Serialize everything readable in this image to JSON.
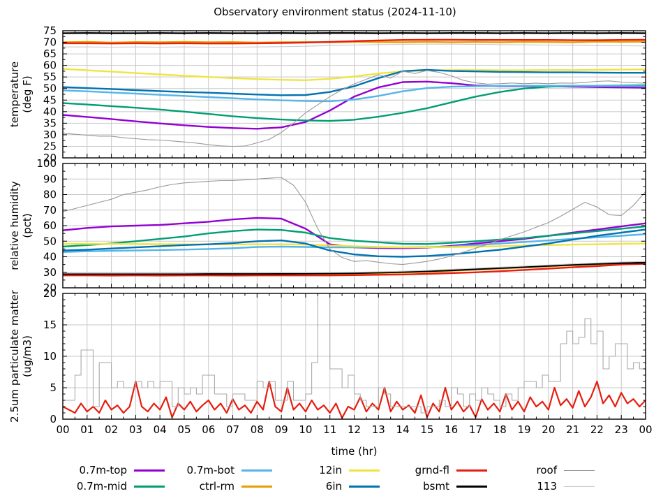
{
  "chart_data": {
    "type": "line",
    "title": "Observatory environment status (2024-11-10)",
    "xlabel": "time (hr)",
    "xlim": [
      0,
      24
    ],
    "grid": true,
    "legend_position": "bottom",
    "x_tick_labels": [
      "00",
      "01",
      "02",
      "03",
      "04",
      "05",
      "06",
      "07",
      "08",
      "09",
      "10",
      "11",
      "12",
      "13",
      "14",
      "15",
      "16",
      "17",
      "18",
      "19",
      "20",
      "21",
      "22",
      "23",
      "00"
    ],
    "legend": [
      {
        "label": "0.7m-top",
        "color": "#9400d3",
        "thin": false
      },
      {
        "label": "0.7m-mid",
        "color": "#009e73",
        "thin": false
      },
      {
        "label": "0.7m-bot",
        "color": "#56b4e9",
        "thin": false
      },
      {
        "label": "ctrl-rm",
        "color": "#e69f00",
        "thin": false
      },
      {
        "label": "12in",
        "color": "#f0e442",
        "thin": false
      },
      {
        "label": "6in",
        "color": "#0072b2",
        "thin": false
      },
      {
        "label": "grnd-fl",
        "color": "#e51e10",
        "thin": false
      },
      {
        "label": "bsmt",
        "color": "#000000",
        "thin": false
      },
      {
        "label": "roof",
        "color": "#999999",
        "thin": true
      },
      {
        "label": "113",
        "color": "#c9c9c9",
        "thin": true
      }
    ],
    "panels": [
      {
        "key": "temperature",
        "ylabel_lines": [
          "temperature",
          "(deg F)"
        ],
        "ylim": [
          20,
          75
        ],
        "yticks": [
          20,
          25,
          30,
          35,
          40,
          45,
          50,
          55,
          60,
          65,
          70,
          75
        ],
        "yminor": 2.5,
        "series": [
          {
            "name": "0.7m-top",
            "color": "#9400d3",
            "width": 2.4,
            "y": [
              38.6,
              37.7,
              36.8,
              35.8,
              34.9,
              34.1,
              33.4,
              32.9,
              32.6,
              33.2,
              35.5,
              40.5,
              46.5,
              50.5,
              52.8,
              53,
              52.3,
              51.3,
              51,
              51,
              51,
              50.8,
              50.6,
              50.5,
              50.4
            ]
          },
          {
            "name": "0.7m-mid",
            "color": "#009e73",
            "width": 2.4,
            "y": [
              43.7,
              43.1,
              42.4,
              41.7,
              40.9,
              40,
              39,
              38,
              37.2,
              36.6,
              36.2,
              36,
              36.5,
              37.8,
              39.5,
              41.5,
              44,
              46.5,
              48.5,
              50,
              50.8,
              51.1,
              51.2,
              51.3,
              51.4
            ]
          },
          {
            "name": "0.7m-bot",
            "color": "#56b4e9",
            "width": 2.4,
            "y": [
              49.2,
              48.8,
              48.3,
              47.8,
              47.3,
              46.8,
              46.3,
              45.8,
              45.3,
              44.9,
              44.6,
              44.5,
              45.2,
              46.8,
              48.8,
              50.2,
              50.8,
              51,
              51.1,
              51.2,
              51.2,
              51.2,
              51.1,
              51.1,
              51
            ]
          },
          {
            "name": "ctrl-rm",
            "color": "#e69f00",
            "width": 2.4,
            "y": [
              70,
              70.2,
              69.9,
              70.1,
              70,
              70.2,
              70,
              70.1,
              69.9,
              70,
              70.1,
              70,
              70.2,
              70.1,
              70,
              70.2,
              70,
              70.1,
              70,
              70.2,
              70.1,
              70,
              70.3,
              70.2,
              70.3
            ]
          },
          {
            "name": "12in",
            "color": "#f0e442",
            "width": 2.4,
            "y": [
              58.5,
              57.9,
              57.3,
              56.7,
              56.1,
              55.5,
              55,
              54.5,
              54.1,
              53.8,
              53.6,
              54.2,
              55.2,
              56.5,
              57.4,
              57.8,
              58,
              58,
              57.9,
              57.9,
              58,
              58,
              58.1,
              58.2,
              58.3
            ]
          },
          {
            "name": "6in",
            "color": "#0072b2",
            "width": 2.4,
            "y": [
              50.6,
              50.2,
              49.8,
              49.3,
              48.9,
              48.5,
              48.2,
              47.8,
              47.4,
              47.1,
              47.2,
              48.5,
              51,
              54.5,
              57.5,
              58.1,
              57.6,
              57.4,
              57.2,
              57.1,
              57,
              57,
              56.9,
              56.8,
              56.8
            ]
          },
          {
            "name": "grnd-fl",
            "color": "#e51e10",
            "width": 2.4,
            "y": [
              69.6,
              69.6,
              69.5,
              69.6,
              69.5,
              69.6,
              69.5,
              69.5,
              69.6,
              69.7,
              69.9,
              70.2,
              70.5,
              70.8,
              71,
              71.1,
              71.1,
              71,
              71,
              71,
              71,
              70.9,
              70.9,
              71,
              71.1
            ]
          },
          {
            "name": "bsmt",
            "color": "#000000",
            "width": 2.4,
            "y": [
              73.9,
              74,
              73.9,
              73.9,
              74,
              73.9,
              74,
              73.9,
              73.9,
              74,
              73.9,
              74,
              74,
              73.9,
              74,
              73.9,
              74,
              74,
              73.9,
              74,
              73.9,
              74,
              73.9,
              74,
              73.9
            ]
          },
          {
            "name": "roof",
            "color": "#999999",
            "width": 1.1,
            "y": [
              30.7,
              30.2,
              29.8,
              29.4,
              29.4,
              28.7,
              28.3,
              27.9,
              27.7,
              27.3,
              26.9,
              26.4,
              25.7,
              25.2,
              25,
              25.1,
              26.5,
              28,
              31,
              35,
              39.5,
              43,
              46.5,
              49.5,
              52,
              54,
              56,
              54.5,
              57.5,
              56.5,
              57.8,
              57,
              55.5,
              53.5,
              52.5,
              51.9,
              52.1,
              52.4,
              52.1,
              52.3,
              52.1,
              52.4,
              52.3,
              52.6,
              53.1,
              53.3,
              52.8,
              52.5,
              52.3
            ]
          },
          {
            "name": "113",
            "color": "#c9c9c9",
            "width": 1.1,
            "y": [
              68,
              68,
              67.9,
              68,
              67.9,
              68,
              67.9,
              67.9,
              68,
              68.1,
              68.3,
              68.6,
              68.8,
              69,
              69.1,
              69.2,
              69.2,
              69.1,
              69,
              68.9,
              68.8,
              68.7,
              68.6,
              68.5,
              68.4
            ]
          }
        ]
      },
      {
        "key": "humidity",
        "ylabel_lines": [
          "relative humidity",
          "(pct)"
        ],
        "ylim": [
          20,
          100
        ],
        "yticks": [
          20,
          30,
          40,
          50,
          60,
          70,
          80,
          90,
          100
        ],
        "yminor": 5,
        "series": [
          {
            "name": "0.7m-top",
            "color": "#9400d3",
            "width": 2.4,
            "y": [
              57,
              58.5,
              59.5,
              60,
              60.5,
              61.5,
              62.5,
              64,
              65,
              64.5,
              58,
              48,
              46,
              45.6,
              45.5,
              45.8,
              47,
              48.5,
              50,
              51.5,
              53.5,
              55.5,
              57.5,
              59.5,
              61.5
            ]
          },
          {
            "name": "0.7m-mid",
            "color": "#009e73",
            "width": 2.4,
            "y": [
              46.5,
              47.5,
              48.5,
              50,
              51.5,
              53,
              55,
              56.5,
              57.5,
              57.2,
              55.5,
              52,
              50.3,
              49.3,
              48.3,
              48.2,
              49,
              50,
              51,
              52,
              53.5,
              55,
              56.5,
              58,
              59.5
            ]
          },
          {
            "name": "0.7m-bot",
            "color": "#56b4e9",
            "width": 2.4,
            "y": [
              43,
              43.5,
              43.8,
              44,
              44.3,
              44.6,
              45,
              45.5,
              46.3,
              46.5,
              46.3,
              46,
              46,
              46,
              46,
              46.2,
              46.5,
              47.5,
              48.5,
              49.5,
              50.5,
              51.5,
              52.5,
              53.5,
              54.5
            ]
          },
          {
            "name": "ctrl-rm",
            "color": "#e69f00",
            "width": 2.4,
            "y": [
              28.6,
              28.6,
              28.6,
              28.6,
              28.6,
              28.6,
              28.7,
              28.7,
              28.7,
              28.8,
              28.8,
              28.9,
              29.1,
              29.4,
              29.8,
              30.3,
              31,
              31.7,
              32.4,
              33.1,
              33.8,
              34.5,
              35.1,
              35.6,
              36
            ]
          },
          {
            "name": "12in",
            "color": "#f0e442",
            "width": 2.4,
            "y": [
              48.3,
              48.3,
              48.2,
              48.2,
              48.1,
              48,
              48,
              47.9,
              48,
              48,
              47.8,
              47.3,
              46.8,
              46.3,
              46,
              46,
              46.2,
              46.5,
              46.8,
              47.2,
              47.5,
              47.8,
              48,
              48.3,
              48.5
            ]
          },
          {
            "name": "6in",
            "color": "#0072b2",
            "width": 2.4,
            "y": [
              44,
              44.5,
              45.3,
              46,
              46.8,
              47.5,
              48,
              48.8,
              50,
              50.5,
              48.5,
              44,
              41.5,
              40.3,
              40,
              40.5,
              41.5,
              43,
              44.5,
              46.5,
              48.5,
              51,
              53.5,
              55.5,
              57.5
            ]
          },
          {
            "name": "grnd-fl",
            "color": "#e51e10",
            "width": 2.4,
            "y": [
              28,
              28,
              27.9,
              28,
              27.9,
              28,
              28,
              27.9,
              28,
              28,
              28,
              28,
              28.2,
              28.4,
              28.6,
              29,
              29.5,
              30,
              30.7,
              31.5,
              32.3,
              33.2,
              34,
              35,
              35.5
            ]
          },
          {
            "name": "bsmt",
            "color": "#000000",
            "width": 2.4,
            "y": [
              29,
              29,
              29,
              29,
              29,
              29,
              29,
              29,
              29.1,
              29.1,
              29.2,
              29.3,
              29.5,
              29.8,
              30.2,
              30.7,
              31.3,
              32,
              32.7,
              33.4,
              34.1,
              34.8,
              35.4,
              35.9,
              36.2
            ]
          },
          {
            "name": "roof",
            "color": "#999999",
            "width": 1.1,
            "y": [
              69,
              71,
              73,
              75,
              77,
              80,
              81.5,
              83,
              85,
              86.5,
              87.5,
              88,
              88.5,
              89,
              89,
              89.5,
              90,
              90.5,
              91,
              86,
              75,
              58,
              45,
              39.5,
              37,
              37.5,
              36.5,
              35.5,
              35,
              36,
              37,
              38.5,
              40.5,
              43,
              45.5,
              48,
              51,
              53.5,
              56,
              59,
              62,
              66,
              70.5,
              75,
              72,
              67,
              66.5,
              73,
              82
            ]
          },
          {
            "name": "113",
            "color": "#c9c9c9",
            "width": 1.1,
            "y": [
              29.5,
              29.5,
              29.5,
              29.5,
              29.5,
              29.5,
              29.6,
              29.6,
              29.6,
              29.7,
              29.7,
              29.8,
              30,
              30.3,
              30.7,
              31.2,
              31.9,
              32.6,
              33.3,
              34,
              34.7,
              35.4,
              36,
              36.6,
              37
            ]
          }
        ]
      },
      {
        "key": "pm25",
        "ylabel_lines": [
          "2.5um particulate matter",
          "(ug/m3)"
        ],
        "ylim": [
          0,
          20
        ],
        "yticks": [
          0,
          5,
          10,
          15,
          20
        ],
        "yminor": 1,
        "series": [
          {
            "name": "grnd-fl",
            "color": "#e51e10",
            "width": 2.2,
            "y": [
              2,
              1.5,
              1,
              2.5,
              1.2,
              2,
              1,
              3,
              1.5,
              2.2,
              1,
              2,
              6,
              2,
              1.2,
              2.5,
              1.5,
              3.5,
              0.3,
              2.5,
              1.5,
              2.8,
              1.2,
              2.2,
              3,
              1.5,
              2.5,
              1,
              3.2,
              1.5,
              2.2,
              1,
              2.8,
              1.5,
              6,
              2,
              1.2,
              5,
              1.5,
              2.5,
              1.2,
              3,
              1.5,
              2.2,
              1,
              2.5,
              0.2,
              2,
              1.5,
              3.5,
              1.2,
              2.5,
              1.5,
              5,
              1.2,
              2.8,
              1.5,
              2.2,
              1,
              3.8,
              0.3,
              2.5,
              1.2,
              5,
              1.5,
              2.8,
              1.2,
              2.2,
              0.3,
              3.2,
              1.5,
              2.5,
              1.2,
              4,
              1.5,
              2.8,
              1.2,
              3.5,
              2,
              2.8,
              1.5,
              5,
              2.2,
              3.2,
              1.8,
              4.5,
              2,
              3.5,
              6,
              2.5,
              3.8,
              2,
              4.2,
              2.5,
              3.2,
              2,
              3
            ]
          },
          {
            "name": "roof",
            "color": "#a9a9a9",
            "width": 1.1,
            "step": true,
            "y": [
              3,
              3,
              7,
              11,
              11,
              2,
              9,
              9,
              5,
              6,
              5,
              5,
              6,
              5,
              6,
              5,
              6,
              6,
              2,
              5,
              4,
              5,
              4,
              7,
              7,
              4,
              4,
              2,
              4,
              4,
              3,
              3,
              6,
              5,
              6,
              3,
              3,
              6,
              3,
              3,
              4,
              9,
              20,
              20,
              8,
              8,
              5,
              7,
              4,
              3,
              2,
              2,
              5,
              4,
              2,
              2,
              2,
              2,
              2,
              1,
              2,
              2,
              3,
              2,
              5,
              4,
              2,
              4,
              3,
              5,
              4,
              3,
              2,
              4,
              3,
              5,
              6,
              6,
              5,
              7,
              6,
              6,
              12,
              14,
              12,
              13,
              16,
              12,
              14,
              8,
              10,
              12,
              12,
              8,
              9,
              8,
              11
            ]
          }
        ]
      }
    ]
  }
}
